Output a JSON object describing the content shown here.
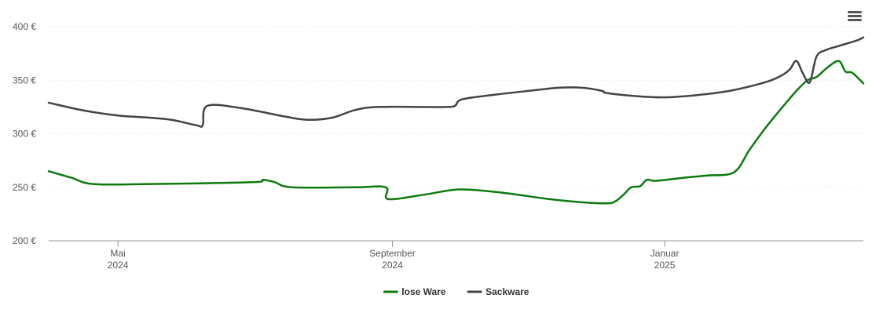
{
  "menu": {
    "icon": "hamburger-menu-icon"
  },
  "chart_data": {
    "type": "line",
    "title": "",
    "xlabel": "",
    "ylabel": "",
    "ylim": [
      200,
      400
    ],
    "yticks": [
      200,
      250,
      300,
      350,
      400
    ],
    "ytick_labels": [
      "200 €",
      "250 €",
      "300 €",
      "350 €",
      "400 €"
    ],
    "xlim": [
      "2024-03-31",
      "2025-03-31"
    ],
    "xticks": [
      {
        "date": "2024-05-01",
        "label": "Mai",
        "year": "2024"
      },
      {
        "date": "2024-09-01",
        "label": "September",
        "year": "2024"
      },
      {
        "date": "2025-01-01",
        "label": "Januar",
        "year": "2025"
      }
    ],
    "grid": true,
    "legend": "bottom-center",
    "series": [
      {
        "name": "lose Ware",
        "color": "#0d7a0d",
        "points": [
          [
            "2024-03-31",
            265
          ],
          [
            "2024-04-10",
            259
          ],
          [
            "2024-04-20",
            253
          ],
          [
            "2024-05-15",
            253
          ],
          [
            "2024-06-15",
            254
          ],
          [
            "2024-07-03",
            255
          ],
          [
            "2024-07-05",
            257
          ],
          [
            "2024-07-10",
            255
          ],
          [
            "2024-07-18",
            250
          ],
          [
            "2024-08-15",
            250
          ],
          [
            "2024-08-29",
            250
          ],
          [
            "2024-08-30",
            239
          ],
          [
            "2024-09-15",
            243
          ],
          [
            "2024-10-01",
            248
          ],
          [
            "2024-10-20",
            245
          ],
          [
            "2024-11-10",
            239
          ],
          [
            "2024-11-25",
            236
          ],
          [
            "2024-12-06",
            235
          ],
          [
            "2024-12-10",
            237
          ],
          [
            "2024-12-14",
            244
          ],
          [
            "2024-12-17",
            250
          ],
          [
            "2024-12-21",
            251
          ],
          [
            "2024-12-24",
            257
          ],
          [
            "2024-12-28",
            256
          ],
          [
            "2025-01-10",
            259
          ],
          [
            "2025-01-20",
            261
          ],
          [
            "2025-02-01",
            264
          ],
          [
            "2025-02-08",
            285
          ],
          [
            "2025-02-15",
            305
          ],
          [
            "2025-02-22",
            323
          ],
          [
            "2025-03-01",
            340
          ],
          [
            "2025-03-06",
            350
          ],
          [
            "2025-03-10",
            353
          ],
          [
            "2025-03-15",
            362
          ],
          [
            "2025-03-20",
            368
          ],
          [
            "2025-03-23",
            358
          ],
          [
            "2025-03-26",
            357
          ],
          [
            "2025-03-31",
            347
          ]
        ]
      },
      {
        "name": "Sackware",
        "color": "#434348",
        "points": [
          [
            "2024-03-31",
            329
          ],
          [
            "2024-04-15",
            322
          ],
          [
            "2024-05-01",
            317
          ],
          [
            "2024-05-15",
            315
          ],
          [
            "2024-05-25",
            313
          ],
          [
            "2024-06-05",
            308
          ],
          [
            "2024-06-08",
            308
          ],
          [
            "2024-06-10",
            326
          ],
          [
            "2024-06-25",
            324
          ],
          [
            "2024-07-15",
            316
          ],
          [
            "2024-07-25",
            313
          ],
          [
            "2024-08-05",
            315
          ],
          [
            "2024-08-15",
            322
          ],
          [
            "2024-08-25",
            325
          ],
          [
            "2024-09-15",
            325
          ],
          [
            "2024-09-25",
            325
          ],
          [
            "2024-09-29",
            326
          ],
          [
            "2024-10-02",
            332
          ],
          [
            "2024-10-15",
            336
          ],
          [
            "2024-11-01",
            340
          ],
          [
            "2024-11-15",
            343
          ],
          [
            "2024-11-25",
            343
          ],
          [
            "2024-12-04",
            340
          ],
          [
            "2024-12-06",
            338
          ],
          [
            "2024-12-20",
            335
          ],
          [
            "2025-01-01",
            334
          ],
          [
            "2025-01-15",
            336
          ],
          [
            "2025-01-30",
            340
          ],
          [
            "2025-02-15",
            348
          ],
          [
            "2025-02-22",
            354
          ],
          [
            "2025-02-26",
            360
          ],
          [
            "2025-03-01",
            368
          ],
          [
            "2025-03-04",
            356
          ],
          [
            "2025-03-07",
            348
          ],
          [
            "2025-03-10",
            372
          ],
          [
            "2025-03-14",
            378
          ],
          [
            "2025-03-20",
            382
          ],
          [
            "2025-03-28",
            387
          ],
          [
            "2025-03-31",
            390
          ]
        ]
      }
    ]
  }
}
